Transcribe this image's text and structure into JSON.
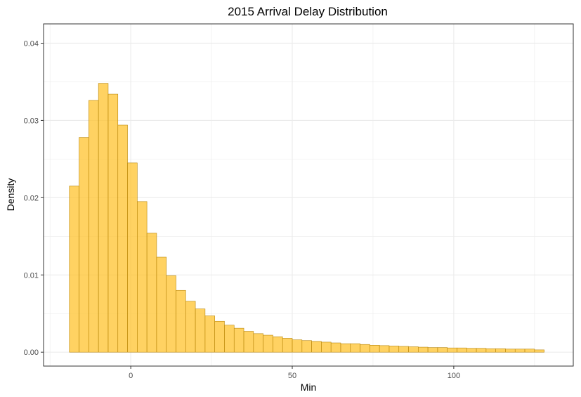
{
  "chart_data": {
    "type": "bar",
    "histogram": true,
    "title": "2015 Arrival Delay Distribution",
    "xlabel": "Min",
    "ylabel": "Density",
    "xlim": [
      -27,
      137
    ],
    "ylim": [
      -0.0018,
      0.0425
    ],
    "x_ticks": [
      0,
      50,
      100
    ],
    "x_tick_labels": [
      "0",
      "50",
      "100"
    ],
    "y_ticks": [
      0,
      0.01,
      0.02,
      0.03,
      0.04
    ],
    "y_tick_labels": [
      "0.00",
      "0.01",
      "0.02",
      "0.03",
      "0.04"
    ],
    "bin_width": 3,
    "bin_start": -19,
    "values": [
      0.0215,
      0.0278,
      0.0326,
      0.0348,
      0.0334,
      0.0294,
      0.0245,
      0.0195,
      0.0154,
      0.0123,
      0.0099,
      0.008,
      0.0066,
      0.0056,
      0.0047,
      0.004,
      0.0035,
      0.0031,
      0.0027,
      0.0024,
      0.0022,
      0.002,
      0.0018,
      0.0016,
      0.0015,
      0.0014,
      0.0013,
      0.0012,
      0.0011,
      0.0011,
      0.001,
      0.0009,
      0.00085,
      0.0008,
      0.00075,
      0.0007,
      0.00065,
      0.0006,
      0.0006,
      0.00055,
      0.00055,
      0.0005,
      0.0005,
      0.00045,
      0.00045,
      0.0004,
      0.0004,
      0.0004,
      0.0003
    ],
    "grid": true,
    "colors": {
      "bar_fill": "#ffc125",
      "bar_stroke": "#b8860b",
      "grid": "#ebebeb",
      "panel_border": "#333333"
    }
  }
}
